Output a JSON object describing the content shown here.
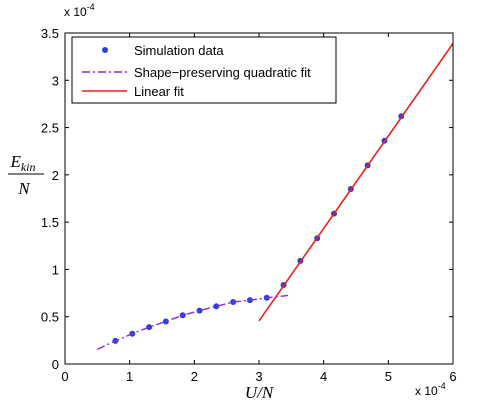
{
  "chart_data": {
    "type": "line",
    "xlabel": "U/N",
    "ylabel_num": "E_kin",
    "ylabel_den": "N",
    "x_multiplier": "x 10",
    "x_multiplier_exp": "-4",
    "y_multiplier": "x 10",
    "y_multiplier_exp": "-4",
    "xlim": [
      0,
      6
    ],
    "ylim": [
      0,
      3.5
    ],
    "x_ticks": [
      "0",
      "1",
      "2",
      "3",
      "4",
      "5",
      "6"
    ],
    "y_ticks": [
      "0",
      "0.5",
      "1",
      "1.5",
      "2",
      "2.5",
      "3",
      "3.5"
    ],
    "grid": false,
    "legend_position": "top-left",
    "series": [
      {
        "name": "Simulation data",
        "style": "markers",
        "color": "#2b3fe0",
        "x": [
          0.78,
          1.04,
          1.3,
          1.56,
          1.82,
          2.08,
          2.34,
          2.6,
          2.86,
          3.12,
          3.38,
          3.64,
          3.9,
          4.16,
          4.42,
          4.68,
          4.94,
          5.2
        ],
        "y": [
          0.245,
          0.32,
          0.39,
          0.45,
          0.515,
          0.565,
          0.61,
          0.655,
          0.675,
          0.7,
          0.835,
          1.09,
          1.33,
          1.59,
          1.85,
          2.1,
          2.36,
          2.62
        ]
      },
      {
        "name": "Shape−preserving quadratic fit",
        "style": "dashdot",
        "color": "#8a2be2",
        "x": [
          0.5,
          0.78,
          1.04,
          1.3,
          1.56,
          1.82,
          2.08,
          2.34,
          2.6,
          2.86,
          3.12,
          3.45
        ],
        "y": [
          0.155,
          0.245,
          0.32,
          0.39,
          0.45,
          0.515,
          0.565,
          0.61,
          0.655,
          0.675,
          0.7,
          0.725
        ]
      },
      {
        "name": "Linear fit",
        "style": "solid",
        "color": "#e8201c",
        "x": [
          3.0,
          6.0
        ],
        "y": [
          0.455,
          3.39
        ]
      }
    ]
  }
}
